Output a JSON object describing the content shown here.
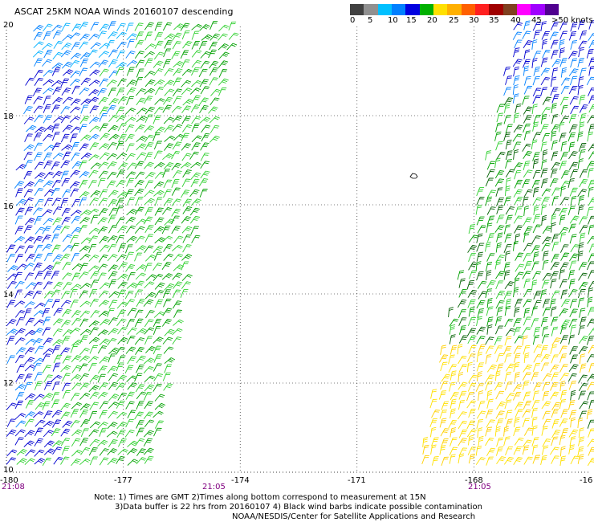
{
  "title": "ASCAT 25KM NOAA Winds 20160107 descending",
  "legend": {
    "ticks": [
      "0",
      "5",
      "10",
      "15",
      "20",
      "25",
      "30",
      "35",
      "40",
      "45",
      ">50 knots"
    ],
    "colors": [
      "#404040",
      "#909090",
      "#00c0ff",
      "#0080ff",
      "#0000e0",
      "#00b000",
      "#ffe000",
      "#ffb000",
      "#ff6000",
      "#ff2020",
      "#a00000",
      "#804020",
      "#ff00ff",
      "#a000ff",
      "#500090"
    ]
  },
  "map": {
    "lon_range": [
      -180,
      -165
    ],
    "lat_range": [
      10,
      20
    ],
    "x_ticks": [
      "-180",
      "-177",
      "-174",
      "-171",
      "-168",
      "-16"
    ],
    "y_ticks": [
      "20",
      "18",
      "16",
      "14",
      "12",
      "10"
    ],
    "times": [
      "21:08",
      "21:05",
      "21:05"
    ],
    "island_symbol": "island-icon",
    "wind_colors": {
      "blue": "#0000d0",
      "lightblue": "#0080ff",
      "cyan": "#00b0ff",
      "green": "#00a000",
      "lightgreen": "#30d030",
      "darkgreen": "#006000",
      "yellow": "#ffe000",
      "yellow2": "#ffd000"
    }
  },
  "notes": {
    "line1": "Note: 1) Times are GMT 2)Times along bottom correspond to measurement at 15N",
    "line2": "3)Data buffer is 22 hrs from 20160107 4) Black wind barbs indicate possible contamination",
    "line3": "NOAA/NESDIS/Center for Satellite Applications and Research"
  }
}
